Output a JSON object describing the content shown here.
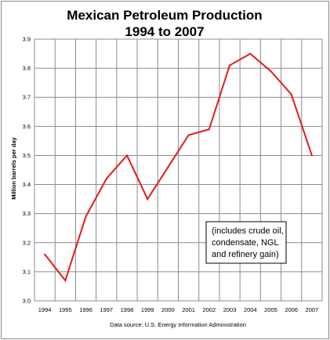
{
  "chart_data": {
    "type": "line",
    "title_lines": [
      "Mexican Petroleum Production",
      "1994 to 2007"
    ],
    "ylabel": "Million barrels per day",
    "source": "Data source: U.S. Energy Information Administration",
    "note_lines": [
      "(includes crude oil,",
      "condensate, NGL",
      "and refinery gain)"
    ],
    "x": [
      "1994",
      "1995",
      "1996",
      "1997",
      "1998",
      "1999",
      "2000",
      "2001",
      "2002",
      "2003",
      "2004",
      "2005",
      "2006",
      "2007"
    ],
    "values": [
      3.16,
      3.07,
      3.29,
      3.42,
      3.5,
      3.35,
      3.46,
      3.57,
      3.59,
      3.81,
      3.85,
      3.79,
      3.71,
      3.5
    ],
    "ylim": [
      3.0,
      3.9
    ],
    "yticks": [
      "3.0",
      "3.1",
      "3.2",
      "3.3",
      "3.4",
      "3.5",
      "3.6",
      "3.7",
      "3.8",
      "3.9"
    ],
    "grid": true,
    "line_color": "#e31b1b"
  }
}
